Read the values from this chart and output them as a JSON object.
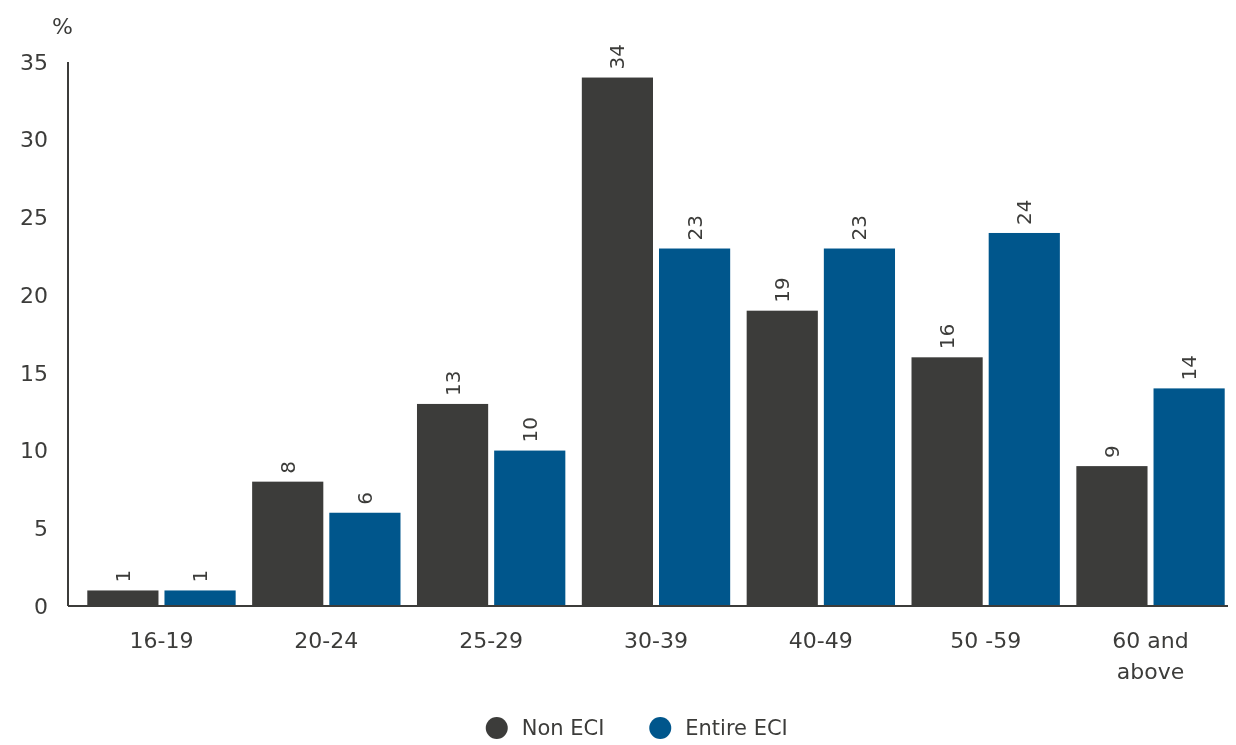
{
  "chart_data": {
    "type": "bar",
    "ylabel": "%",
    "categories": [
      "16-19",
      "20-24",
      "25-29",
      "30-39",
      "40-49",
      "50 -59",
      "60 and above"
    ],
    "series": [
      {
        "name": "Non ECI",
        "color": "#3c3c3a",
        "values": [
          1,
          8,
          13,
          34,
          19,
          16,
          9
        ]
      },
      {
        "name": "Entire ECI",
        "color": "#00568c",
        "values": [
          1,
          6,
          10,
          23,
          23,
          24,
          14
        ]
      }
    ],
    "ylim": [
      0,
      35
    ],
    "yticks": [
      0,
      5,
      10,
      15,
      20,
      25,
      30,
      35
    ],
    "data_labels": true,
    "legend": "bottom",
    "grid": false
  }
}
